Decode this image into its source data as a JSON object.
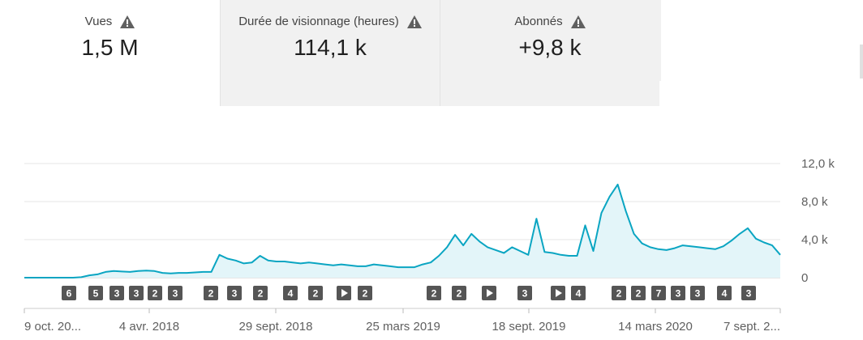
{
  "metrics": [
    {
      "label": "Vues",
      "value": "1,5 M",
      "icon": "warning-icon"
    },
    {
      "label": "Durée de visionnage (heures)",
      "value": "114,1 k",
      "icon": "warning-icon"
    },
    {
      "label": "Abonnés",
      "value": "+9,8 k",
      "icon": "warning-icon"
    }
  ],
  "colors": {
    "line": "#0aa5c2",
    "fill": "#e3f5f9",
    "badge": "#555555",
    "grid": "#e5e5e5"
  },
  "chart_data": {
    "type": "area",
    "x_ticks": [
      "9 oct. 20...",
      "4 avr. 2018",
      "29 sept. 2018",
      "25 mars 2019",
      "18 sept. 2019",
      "14 mars 2020",
      "7 sept. 2..."
    ],
    "y_ticks": [
      "12,0 k",
      "8,0 k",
      "4,0 k",
      "0"
    ],
    "ylim": [
      0,
      12000
    ],
    "grid": true,
    "series": [
      {
        "values": [
          0,
          0,
          0,
          0,
          0,
          0,
          0,
          50,
          250,
          350,
          600,
          700,
          650,
          600,
          700,
          750,
          700,
          500,
          450,
          500,
          500,
          550,
          600,
          600,
          2400,
          2000,
          1800,
          1500,
          1600,
          2300,
          1800,
          1700,
          1700,
          1600,
          1500,
          1600,
          1500,
          1400,
          1300,
          1400,
          1300,
          1200,
          1200,
          1400,
          1300,
          1200,
          1100,
          1100,
          1100,
          1400,
          1600,
          2300,
          3200,
          4500,
          3400,
          4600,
          3800,
          3200,
          2900,
          2600,
          3200,
          2800,
          2400,
          6200,
          2700,
          2600,
          2400,
          2300,
          2300,
          5500,
          2800,
          6800,
          8500,
          9800,
          7000,
          4600,
          3600,
          3200,
          3000,
          2900,
          3100,
          3400,
          3300,
          3200,
          3100,
          3000,
          3300,
          3900,
          4600,
          5200,
          4100,
          3700,
          3400,
          2400
        ]
      }
    ],
    "badges": [
      {
        "label": "6",
        "play": false
      },
      {
        "label": "5",
        "play": false
      },
      {
        "label": "3",
        "play": false
      },
      {
        "label": "3",
        "play": false
      },
      {
        "label": "2",
        "play": false
      },
      {
        "label": "3",
        "play": false
      },
      {
        "label": "2",
        "play": false
      },
      {
        "label": "3",
        "play": false
      },
      {
        "label": "2",
        "play": false
      },
      {
        "label": "4",
        "play": false
      },
      {
        "label": "2",
        "play": false
      },
      {
        "label": "",
        "play": true
      },
      {
        "label": "2",
        "play": false
      },
      {
        "label": "2",
        "play": false
      },
      {
        "label": "2",
        "play": false
      },
      {
        "label": "",
        "play": true
      },
      {
        "label": "3",
        "play": false
      },
      {
        "label": "",
        "play": true
      },
      {
        "label": "4",
        "play": false
      },
      {
        "label": "2",
        "play": false
      },
      {
        "label": "2",
        "play": false
      },
      {
        "label": "7",
        "play": false
      },
      {
        "label": "3",
        "play": false
      },
      {
        "label": "3",
        "play": false
      },
      {
        "label": "4",
        "play": false
      },
      {
        "label": "3",
        "play": false
      }
    ]
  }
}
